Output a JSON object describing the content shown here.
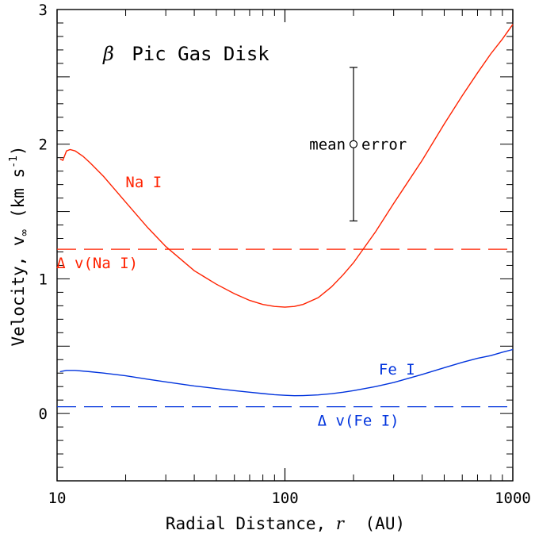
{
  "chart_data": {
    "type": "line",
    "title": "β Pic Gas Disk",
    "title_parts": {
      "symbol": "β",
      "rest": "Pic Gas Disk"
    },
    "xlabel": "Radial Distance, r  (AU)",
    "xlabel_parts": {
      "prefix": "Radial Distance,",
      "var": "r",
      "unit": "(AU)"
    },
    "ylabel": "Velocity, v∞  (km s⁻¹)",
    "ylabel_parts": {
      "prefix": "Velocity, v",
      "sub": "∞",
      "unit": "(km s",
      "exp": "-1",
      "close": ")"
    },
    "x_scale": "log",
    "xlim": [
      10,
      1000
    ],
    "ylim": [
      -0.5,
      3
    ],
    "x_ticks": [
      {
        "value": 10,
        "label": "10"
      },
      {
        "value": 100,
        "label": "100"
      },
      {
        "value": 1000,
        "label": "1000"
      }
    ],
    "y_ticks": [
      {
        "value": 0,
        "label": "0"
      },
      {
        "value": 1,
        "label": "1"
      },
      {
        "value": 2,
        "label": "2"
      },
      {
        "value": 3,
        "label": "3"
      }
    ],
    "series": [
      {
        "name": "Na I",
        "color": "#ff2200",
        "x": [
          10.3,
          10.6,
          11.0,
          11.4,
          12,
          13,
          14,
          16,
          18,
          20,
          25,
          30,
          40,
          50,
          60,
          70,
          80,
          90,
          100,
          110,
          120,
          140,
          160,
          180,
          200,
          250,
          300,
          400,
          500,
          600,
          700,
          800,
          900,
          1000
        ],
        "y": [
          1.89,
          1.88,
          1.95,
          1.96,
          1.95,
          1.91,
          1.86,
          1.76,
          1.66,
          1.57,
          1.38,
          1.24,
          1.06,
          0.96,
          0.89,
          0.84,
          0.81,
          0.795,
          0.79,
          0.795,
          0.81,
          0.86,
          0.94,
          1.03,
          1.12,
          1.35,
          1.56,
          1.88,
          2.15,
          2.36,
          2.53,
          2.67,
          2.78,
          2.89
        ]
      },
      {
        "name": "Fe I",
        "color": "#0033dd",
        "x": [
          10.3,
          10.6,
          11.0,
          11.5,
          12,
          14,
          16,
          20,
          25,
          30,
          40,
          50,
          60,
          70,
          80,
          90,
          100,
          110,
          120,
          140,
          160,
          180,
          200,
          250,
          300,
          400,
          500,
          600,
          700,
          800,
          900,
          1000
        ],
        "y": [
          0.31,
          0.315,
          0.32,
          0.32,
          0.32,
          0.31,
          0.3,
          0.28,
          0.255,
          0.235,
          0.205,
          0.185,
          0.17,
          0.158,
          0.148,
          0.14,
          0.135,
          0.132,
          0.133,
          0.138,
          0.147,
          0.158,
          0.17,
          0.2,
          0.23,
          0.29,
          0.34,
          0.38,
          0.41,
          0.43,
          0.455,
          0.475
        ]
      }
    ],
    "reference_lines": [
      {
        "label": "Δ v(Na I)",
        "y": 1.22,
        "color": "#ff2200",
        "style": "dashed"
      },
      {
        "label": "Δ v(Fe I)",
        "y": 0.05,
        "color": "#0033dd",
        "style": "dashed"
      }
    ],
    "series_labels": [
      {
        "text": "Na I",
        "x": 24,
        "y": 1.72,
        "color": "#ff2200"
      },
      {
        "text": "Fe I",
        "x": 310,
        "y": 0.33,
        "color": "#0033dd"
      }
    ],
    "error_bar": {
      "label_left": "mean",
      "label_right": "error",
      "x": 200,
      "y": 2.0,
      "y_low": 1.43,
      "y_high": 2.57,
      "color": "#000000"
    },
    "grid": false,
    "legend": "none"
  }
}
